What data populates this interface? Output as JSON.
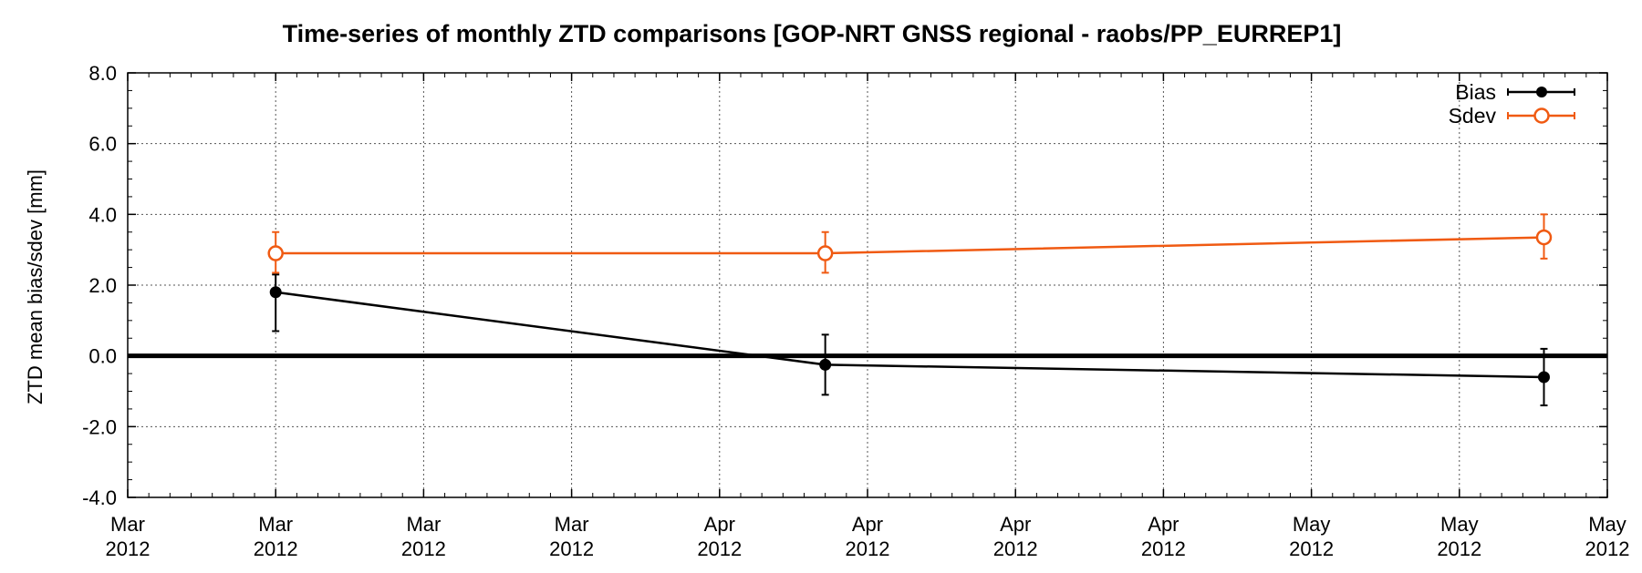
{
  "chart_data": {
    "type": "line",
    "title": "Time-series of monthly ZTD comparisons [GOP-NRT GNSS regional - raobs/PP_EURREP1]",
    "xlabel": "",
    "ylabel": "ZTD mean bias/sdev [mm]",
    "ylim": [
      -4.0,
      8.0
    ],
    "y_ticks": [
      "-4.0",
      "-2.0",
      "0.0",
      "2.0",
      "4.0",
      "6.0",
      "8.0"
    ],
    "x_ticks": [
      {
        "month": "Mar",
        "year": "2012"
      },
      {
        "month": "Mar",
        "year": "2012"
      },
      {
        "month": "Mar",
        "year": "2012"
      },
      {
        "month": "Mar",
        "year": "2012"
      },
      {
        "month": "Apr",
        "year": "2012"
      },
      {
        "month": "Apr",
        "year": "2012"
      },
      {
        "month": "Apr",
        "year": "2012"
      },
      {
        "month": "Apr",
        "year": "2012"
      },
      {
        "month": "May",
        "year": "2012"
      },
      {
        "month": "May",
        "year": "2012"
      },
      {
        "month": "May",
        "year": "2012"
      }
    ],
    "xlim": [
      "2012-03-01",
      "2012-05-10"
    ],
    "grid": true,
    "zero_line": true,
    "legend_position": "top-right",
    "series": [
      {
        "name": "Bias",
        "color": "#000000",
        "marker": "filled-circle",
        "x": [
          "2012-03-08",
          "2012-04-03",
          "2012-05-07"
        ],
        "values": [
          1.8,
          -0.25,
          -0.6
        ],
        "error": [
          [
            1.1,
            0.5
          ],
          [
            0.85,
            0.85
          ],
          [
            0.8,
            0.8
          ]
        ]
      },
      {
        "name": "Sdev",
        "color": "#f05a12",
        "marker": "open-circle",
        "x": [
          "2012-03-08",
          "2012-04-03",
          "2012-05-07"
        ],
        "values": [
          2.9,
          2.9,
          3.35
        ],
        "error": [
          [
            0.55,
            0.6
          ],
          [
            0.55,
            0.6
          ],
          [
            0.6,
            0.65
          ]
        ]
      }
    ]
  }
}
